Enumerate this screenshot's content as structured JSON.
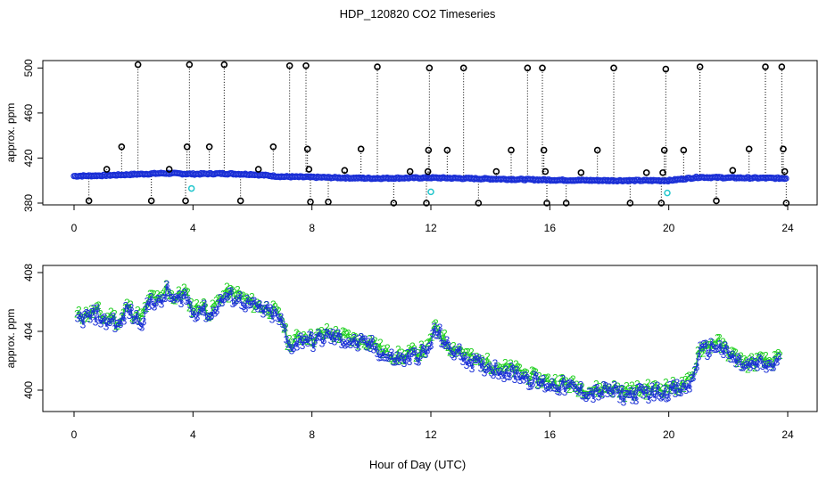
{
  "title": "HDP_120820  CO2 Timeseries",
  "xlabel": "Hour of Day (UTC)",
  "colors": {
    "black_marker": "#000000",
    "blue_marker": "#1a2fd6",
    "cyan_marker": "#22c6cc",
    "green_label": "#20d020",
    "blue_label": "#1a2fd6"
  },
  "chart_data": [
    {
      "type": "scatter",
      "name": "top-panel",
      "ylabel": "approx. ppm",
      "xlim": [
        0,
        24
      ],
      "ylim": [
        380,
        505
      ],
      "xticks": [
        0,
        4,
        8,
        12,
        16,
        20,
        24
      ],
      "yticks": [
        380,
        420,
        460,
        500
      ],
      "grid": false,
      "baseline": {
        "color": "blue",
        "knots": [
          [
            0,
            404
          ],
          [
            1,
            404.5
          ],
          [
            2,
            405.5
          ],
          [
            3,
            406.5
          ],
          [
            4,
            405.8
          ],
          [
            5,
            406.2
          ],
          [
            6,
            405.5
          ],
          [
            7,
            403.5
          ],
          [
            8,
            403
          ],
          [
            10,
            402
          ],
          [
            12,
            402.5
          ],
          [
            14,
            401.5
          ],
          [
            16,
            400.5
          ],
          [
            18,
            400
          ],
          [
            20,
            400
          ],
          [
            21,
            403
          ],
          [
            22,
            402.5
          ],
          [
            24,
            402
          ]
        ]
      },
      "spikes": [
        {
          "x": 0.5,
          "y": 382
        },
        {
          "x": 1.1,
          "y": 410
        },
        {
          "x": 1.6,
          "y": 430
        },
        {
          "x": 2.15,
          "y": 503
        },
        {
          "x": 2.6,
          "y": 382
        },
        {
          "x": 3.2,
          "y": 410
        },
        {
          "x": 3.75,
          "y": 382
        },
        {
          "x": 3.8,
          "y": 430
        },
        {
          "x": 3.88,
          "y": 503
        },
        {
          "x": 4.55,
          "y": 430
        },
        {
          "x": 5.05,
          "y": 503
        },
        {
          "x": 5.6,
          "y": 382
        },
        {
          "x": 6.2,
          "y": 410
        },
        {
          "x": 6.7,
          "y": 430
        },
        {
          "x": 7.25,
          "y": 502
        },
        {
          "x": 7.8,
          "y": 502
        },
        {
          "x": 7.85,
          "y": 428
        },
        {
          "x": 7.9,
          "y": 410
        },
        {
          "x": 7.95,
          "y": 381
        },
        {
          "x": 8.55,
          "y": 381
        },
        {
          "x": 9.1,
          "y": 409
        },
        {
          "x": 9.65,
          "y": 428
        },
        {
          "x": 10.2,
          "y": 501
        },
        {
          "x": 10.75,
          "y": 380
        },
        {
          "x": 11.3,
          "y": 408
        },
        {
          "x": 11.85,
          "y": 380
        },
        {
          "x": 11.9,
          "y": 408
        },
        {
          "x": 11.92,
          "y": 427
        },
        {
          "x": 11.95,
          "y": 500
        },
        {
          "x": 12.55,
          "y": 427
        },
        {
          "x": 13.1,
          "y": 500
        },
        {
          "x": 13.6,
          "y": 380
        },
        {
          "x": 14.2,
          "y": 408
        },
        {
          "x": 14.7,
          "y": 427
        },
        {
          "x": 15.25,
          "y": 500
        },
        {
          "x": 15.75,
          "y": 500
        },
        {
          "x": 15.8,
          "y": 427
        },
        {
          "x": 15.85,
          "y": 408
        },
        {
          "x": 15.9,
          "y": 380
        },
        {
          "x": 16.55,
          "y": 380
        },
        {
          "x": 17.05,
          "y": 407
        },
        {
          "x": 17.6,
          "y": 427
        },
        {
          "x": 18.15,
          "y": 500
        },
        {
          "x": 18.7,
          "y": 380
        },
        {
          "x": 19.25,
          "y": 407
        },
        {
          "x": 19.75,
          "y": 380
        },
        {
          "x": 19.8,
          "y": 407
        },
        {
          "x": 19.85,
          "y": 427
        },
        {
          "x": 19.9,
          "y": 499
        },
        {
          "x": 20.5,
          "y": 427
        },
        {
          "x": 21.05,
          "y": 501
        },
        {
          "x": 21.6,
          "y": 382
        },
        {
          "x": 22.15,
          "y": 409
        },
        {
          "x": 22.7,
          "y": 428
        },
        {
          "x": 23.25,
          "y": 501
        },
        {
          "x": 23.8,
          "y": 501
        },
        {
          "x": 23.85,
          "y": 428
        },
        {
          "x": 23.9,
          "y": 408
        },
        {
          "x": 23.95,
          "y": 380
        }
      ],
      "cyan_points": [
        {
          "x": 3.95,
          "y": 393
        },
        {
          "x": 12.0,
          "y": 390
        },
        {
          "x": 19.95,
          "y": 389
        }
      ]
    },
    {
      "type": "scatter",
      "name": "bottom-panel",
      "ylabel": "approx. ppm",
      "xlim": [
        0,
        24
      ],
      "ylim": [
        399,
        408
      ],
      "xticks": [
        0,
        4,
        8,
        12,
        16,
        20,
        24
      ],
      "yticks": [
        400,
        404,
        408
      ],
      "grid": false,
      "series": [
        {
          "label": "2",
          "color": "green"
        },
        {
          "label": "3",
          "color": "blue"
        }
      ],
      "curve": [
        [
          0,
          405
        ],
        [
          0.5,
          405.2
        ],
        [
          0.8,
          405.4
        ],
        [
          1.0,
          404.8
        ],
        [
          1.3,
          405.1
        ],
        [
          1.5,
          404.5
        ],
        [
          1.8,
          405.8
        ],
        [
          2.0,
          405.2
        ],
        [
          2.3,
          405.0
        ],
        [
          2.6,
          406.5
        ],
        [
          2.9,
          406.0
        ],
        [
          3.1,
          407.0
        ],
        [
          3.4,
          406.2
        ],
        [
          3.7,
          406.8
        ],
        [
          4.0,
          405.5
        ],
        [
          4.3,
          405.8
        ],
        [
          4.6,
          405.2
        ],
        [
          4.8,
          406.0
        ],
        [
          5.1,
          406.6
        ],
        [
          5.5,
          406.5
        ],
        [
          5.9,
          406.0
        ],
        [
          6.3,
          405.7
        ],
        [
          6.7,
          405.4
        ],
        [
          7.0,
          404.8
        ],
        [
          7.2,
          403.2
        ],
        [
          7.5,
          403.5
        ],
        [
          7.8,
          403.8
        ],
        [
          8.0,
          403.5
        ],
        [
          8.5,
          403.9
        ],
        [
          9.0,
          403.7
        ],
        [
          9.5,
          403.4
        ],
        [
          10.0,
          403.3
        ],
        [
          10.5,
          402.5
        ],
        [
          11.0,
          402.3
        ],
        [
          11.5,
          402.6
        ],
        [
          11.9,
          402.8
        ],
        [
          12.1,
          404.2
        ],
        [
          12.3,
          404.0
        ],
        [
          12.6,
          403.0
        ],
        [
          13.0,
          402.7
        ],
        [
          13.5,
          402.0
        ],
        [
          14.0,
          401.8
        ],
        [
          14.5,
          401.5
        ],
        [
          15.0,
          401.3
        ],
        [
          15.5,
          400.8
        ],
        [
          16.0,
          400.6
        ],
        [
          16.5,
          400.5
        ],
        [
          17.0,
          400.2
        ],
        [
          17.5,
          400.0
        ],
        [
          18.0,
          400.2
        ],
        [
          18.5,
          399.9
        ],
        [
          19.0,
          400.0
        ],
        [
          19.5,
          400.1
        ],
        [
          20.0,
          400.2
        ],
        [
          20.5,
          400.3
        ],
        [
          20.8,
          400.8
        ],
        [
          21.0,
          402.8
        ],
        [
          21.3,
          403.0
        ],
        [
          21.6,
          403.3
        ],
        [
          21.9,
          402.8
        ],
        [
          22.2,
          402.3
        ],
        [
          22.6,
          401.8
        ],
        [
          23.0,
          402.0
        ],
        [
          23.4,
          401.9
        ],
        [
          23.7,
          402.1
        ]
      ]
    }
  ]
}
